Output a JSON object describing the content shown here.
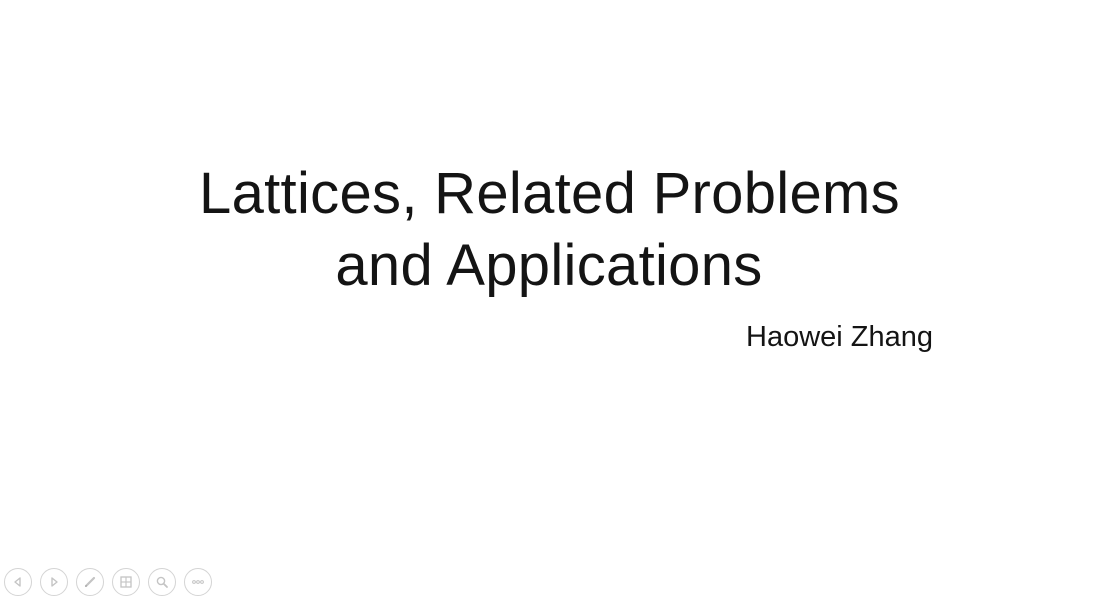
{
  "slide": {
    "title_line1": "Lattices, Related Problems",
    "title_line2": "and Applications",
    "author": "Haowei Zhang"
  },
  "controls": [
    {
      "icon": "previous-arrow-icon"
    },
    {
      "icon": "next-arrow-icon"
    },
    {
      "icon": "pen-icon"
    },
    {
      "icon": "slides-grid-icon"
    },
    {
      "icon": "zoom-icon"
    },
    {
      "icon": "more-options-icon"
    }
  ],
  "colors": {
    "text": "#141414",
    "control_stroke": "#d4d4d4",
    "background": "#ffffff"
  }
}
